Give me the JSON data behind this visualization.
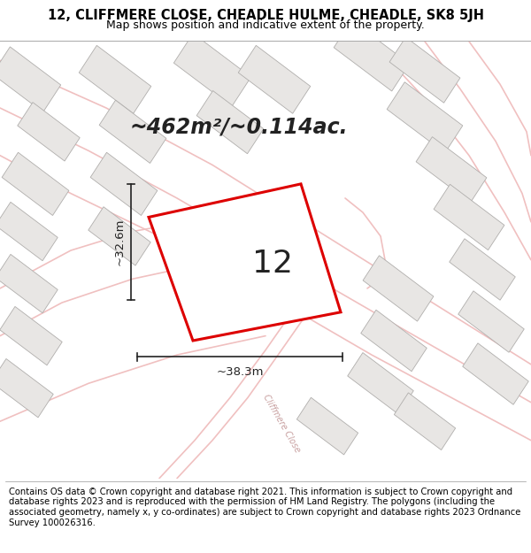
{
  "title": "12, CLIFFMERE CLOSE, CHEADLE HULME, CHEADLE, SK8 5JH",
  "subtitle": "Map shows position and indicative extent of the property.",
  "area_label": "~462m²/~0.114ac.",
  "property_label": "12",
  "dim_horizontal": "~38.3m",
  "dim_vertical": "~32.6m",
  "footer": "Contains OS data © Crown copyright and database right 2021. This information is subject to Crown copyright and database rights 2023 and is reproduced with the permission of HM Land Registry. The polygons (including the associated geometry, namely x, y co-ordinates) are subject to Crown copyright and database rights 2023 Ordnance Survey 100026316.",
  "map_bg": "#f7f5f3",
  "building_fill": "#e8e6e4",
  "building_edge": "#b0aeac",
  "road_color": "#f0c0c0",
  "property_edge": "#dd0000",
  "annotation_color": "#222222",
  "title_fontsize": 10.5,
  "subtitle_fontsize": 9,
  "footer_fontsize": 7.2,
  "cliffmere_color": "#c8a0a0"
}
